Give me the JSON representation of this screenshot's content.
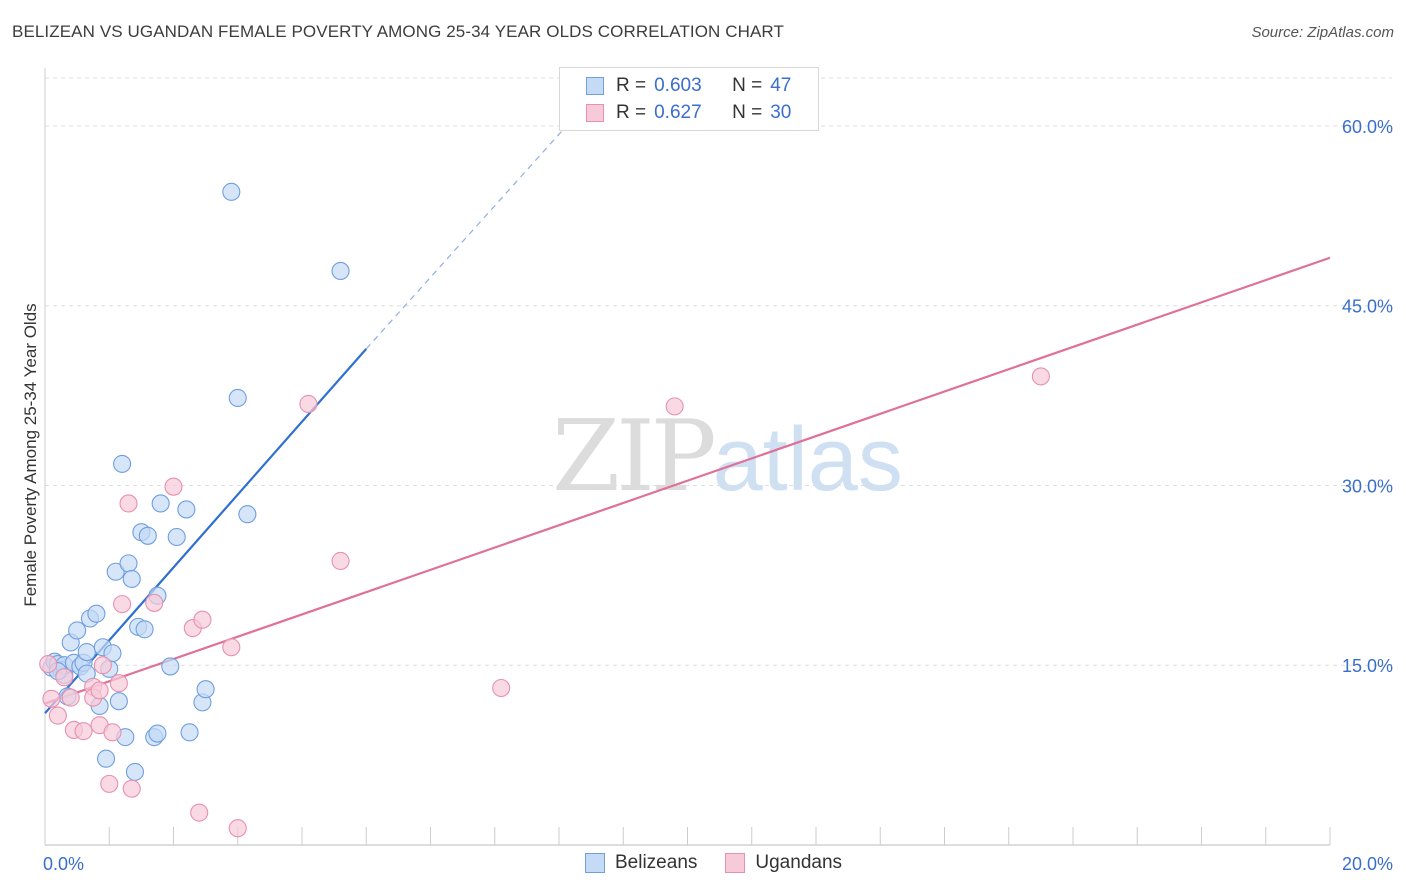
{
  "title": "BELIZEAN VS UGANDAN FEMALE POVERTY AMONG 25-34 YEAR OLDS CORRELATION CHART",
  "source": "Source: ZipAtlas.com",
  "watermark": {
    "zip": "ZIP",
    "atlas": "atlas"
  },
  "legend": {
    "rows": [
      {
        "r_label": "R =",
        "r_value": "0.603",
        "n_label": "N =",
        "n_value": "47"
      },
      {
        "r_label": "R =",
        "r_value": "0.627",
        "n_label": "N =",
        "n_value": "30"
      }
    ]
  },
  "chart_data": {
    "type": "scatter",
    "title": "BELIZEAN VS UGANDAN FEMALE POVERTY AMONG 25-34 YEAR OLDS CORRELATION CHART",
    "xlabel": "",
    "ylabel": "Female Poverty Among 25-34 Year Olds",
    "xlim": [
      0,
      20
    ],
    "ylim": [
      0,
      64
    ],
    "x_tick_labels": [
      {
        "value": 0,
        "label": "0.0%"
      },
      {
        "value": 20,
        "label": "20.0%"
      }
    ],
    "y_tick_labels": [
      {
        "value": 15,
        "label": "15.0%"
      },
      {
        "value": 30,
        "label": "30.0%"
      },
      {
        "value": 45,
        "label": "45.0%"
      },
      {
        "value": 60,
        "label": "60.0%"
      }
    ],
    "grid": true,
    "legend_position": "top-center",
    "series": [
      {
        "name": "Belizeans",
        "color": "#6f9fe0",
        "fill": "#c5daf5",
        "line_color": "#2f6fd0",
        "R": 0.603,
        "N": 47,
        "trend": {
          "x0": 0,
          "y0": 11.0,
          "x1": 5.0,
          "y1": 41.4,
          "dashed_to_x": 8.2,
          "dashed_to_y": 60.5
        },
        "points": [
          [
            0.1,
            14.8
          ],
          [
            0.15,
            15.3
          ],
          [
            0.2,
            15.1
          ],
          [
            0.25,
            14.6
          ],
          [
            0.3,
            14.2
          ],
          [
            0.3,
            15.0
          ],
          [
            0.35,
            12.4
          ],
          [
            0.4,
            16.9
          ],
          [
            0.45,
            15.2
          ],
          [
            0.5,
            17.9
          ],
          [
            0.55,
            14.9
          ],
          [
            0.6,
            15.2
          ],
          [
            0.65,
            16.1
          ],
          [
            0.65,
            14.3
          ],
          [
            0.7,
            18.9
          ],
          [
            0.8,
            19.3
          ],
          [
            0.85,
            11.6
          ],
          [
            0.9,
            16.5
          ],
          [
            0.95,
            7.2
          ],
          [
            1.0,
            14.7
          ],
          [
            1.05,
            16.0
          ],
          [
            1.1,
            22.8
          ],
          [
            1.15,
            12.0
          ],
          [
            1.2,
            31.8
          ],
          [
            1.25,
            9.0
          ],
          [
            1.3,
            23.5
          ],
          [
            1.35,
            22.2
          ],
          [
            1.4,
            6.1
          ],
          [
            1.45,
            18.2
          ],
          [
            1.5,
            26.1
          ],
          [
            1.55,
            18.0
          ],
          [
            1.6,
            25.8
          ],
          [
            1.7,
            9.0
          ],
          [
            1.75,
            20.8
          ],
          [
            1.75,
            9.3
          ],
          [
            1.8,
            28.5
          ],
          [
            1.95,
            14.9
          ],
          [
            2.05,
            25.7
          ],
          [
            2.2,
            28.0
          ],
          [
            2.25,
            9.4
          ],
          [
            2.45,
            11.9
          ],
          [
            2.5,
            13.0
          ],
          [
            2.9,
            54.5
          ],
          [
            3.0,
            37.3
          ],
          [
            3.15,
            27.6
          ],
          [
            4.6,
            47.9
          ],
          [
            0.2,
            14.5
          ]
        ]
      },
      {
        "name": "Ugandans",
        "color": "#e890ad",
        "fill": "#f6cad9",
        "line_color": "#e07098",
        "R": 0.627,
        "N": 30,
        "trend": {
          "x0": 0,
          "y0": 11.8,
          "x1": 20,
          "y1": 49.0
        },
        "points": [
          [
            0.05,
            15.1
          ],
          [
            0.1,
            12.2
          ],
          [
            0.2,
            10.8
          ],
          [
            0.3,
            14.0
          ],
          [
            0.4,
            12.3
          ],
          [
            0.45,
            9.6
          ],
          [
            0.6,
            9.5
          ],
          [
            0.75,
            13.2
          ],
          [
            0.75,
            12.3
          ],
          [
            0.85,
            12.9
          ],
          [
            0.85,
            10.0
          ],
          [
            0.9,
            15.0
          ],
          [
            1.0,
            5.1
          ],
          [
            1.05,
            9.4
          ],
          [
            1.15,
            13.5
          ],
          [
            1.2,
            20.1
          ],
          [
            1.3,
            28.5
          ],
          [
            1.35,
            4.7
          ],
          [
            1.7,
            20.2
          ],
          [
            2.0,
            29.9
          ],
          [
            2.3,
            18.1
          ],
          [
            2.4,
            2.7
          ],
          [
            2.45,
            18.8
          ],
          [
            2.9,
            16.5
          ],
          [
            3.0,
            1.4
          ],
          [
            4.1,
            36.8
          ],
          [
            4.6,
            23.7
          ],
          [
            7.1,
            13.1
          ],
          [
            9.8,
            36.6
          ],
          [
            15.5,
            39.1
          ]
        ]
      }
    ]
  }
}
